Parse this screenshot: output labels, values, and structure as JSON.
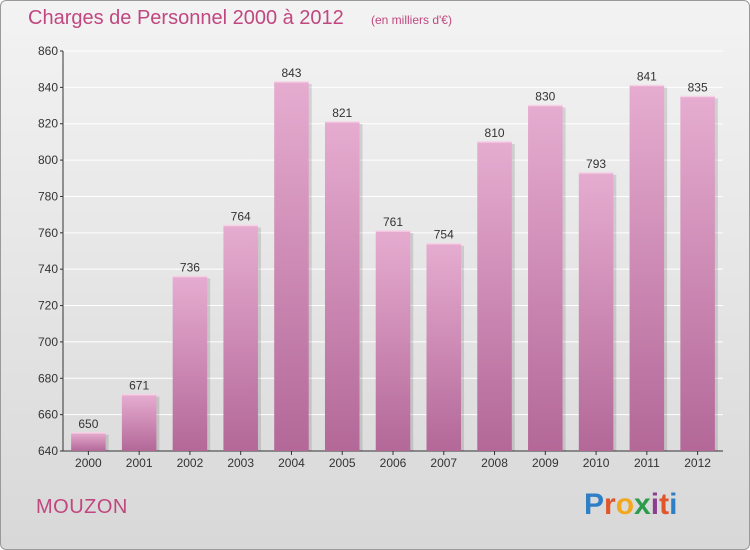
{
  "header": {
    "title": "Charges de Personnel 2000 à 2012",
    "subtitle": "(en milliers d'€)"
  },
  "footer": {
    "commune": "MOUZON",
    "brand_letters": [
      "P",
      "r",
      "o",
      "x",
      "i",
      "t",
      "i"
    ],
    "brand_colors": [
      "#2f7fc6",
      "#e0562a",
      "#f2a81c",
      "#2a9c4a",
      "#8a3f8f",
      "#e0562a",
      "#2f7fc6"
    ]
  },
  "colors": {
    "bar": "#d98fbb",
    "bar_light": "#e6acd0",
    "bar_dark": "#b36898",
    "grid": "#ffffff",
    "axis": "#333333",
    "title": "#c0477f"
  },
  "chart_data": {
    "type": "bar",
    "title": "Charges de Personnel 2000 à 2012",
    "subtitle": "(en milliers d'€)",
    "categories": [
      "2000",
      "2001",
      "2002",
      "2003",
      "2004",
      "2005",
      "2006",
      "2007",
      "2008",
      "2009",
      "2010",
      "2011",
      "2012"
    ],
    "values": [
      650,
      671,
      736,
      764,
      843,
      821,
      761,
      754,
      810,
      830,
      793,
      841,
      835
    ],
    "ylim": [
      640,
      860
    ],
    "yticks": [
      640,
      660,
      680,
      700,
      720,
      740,
      760,
      780,
      800,
      820,
      840,
      860
    ],
    "grid": true,
    "data_labels": true
  }
}
